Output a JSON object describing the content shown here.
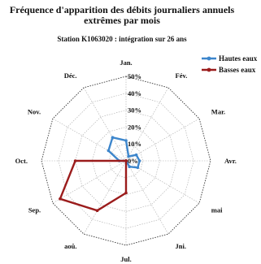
{
  "chart_data": {
    "type": "radar",
    "title_line1": "Fréquence d'apparition des débits journaliers annuels",
    "title_line2": "extrêmes par mois",
    "subtitle": "Station K1063020 : intégration sur 26 ans",
    "categories": [
      "Jan.",
      "Fév.",
      "Mar.",
      "Avr.",
      "mai",
      "Jni.",
      "Jul.",
      "aoû.",
      "Sep.",
      "Oct.",
      "Nov.",
      "Déc."
    ],
    "ticks": [
      "0%",
      "10%",
      "20%",
      "30%",
      "40%",
      "50%"
    ],
    "rmax": 50,
    "series": [
      {
        "name": "Hautes eaux",
        "color": "#3d86cc",
        "values": [
          12,
          3,
          7,
          8,
          8,
          4,
          0,
          0,
          0,
          4,
          12,
          16
        ]
      },
      {
        "name": "Basses eaux",
        "color": "#9b1c1c",
        "values": [
          0,
          0,
          0,
          0,
          0,
          0,
          19,
          34,
          45,
          30,
          0,
          0
        ]
      }
    ],
    "legend_position": "top-right",
    "grid": true
  }
}
